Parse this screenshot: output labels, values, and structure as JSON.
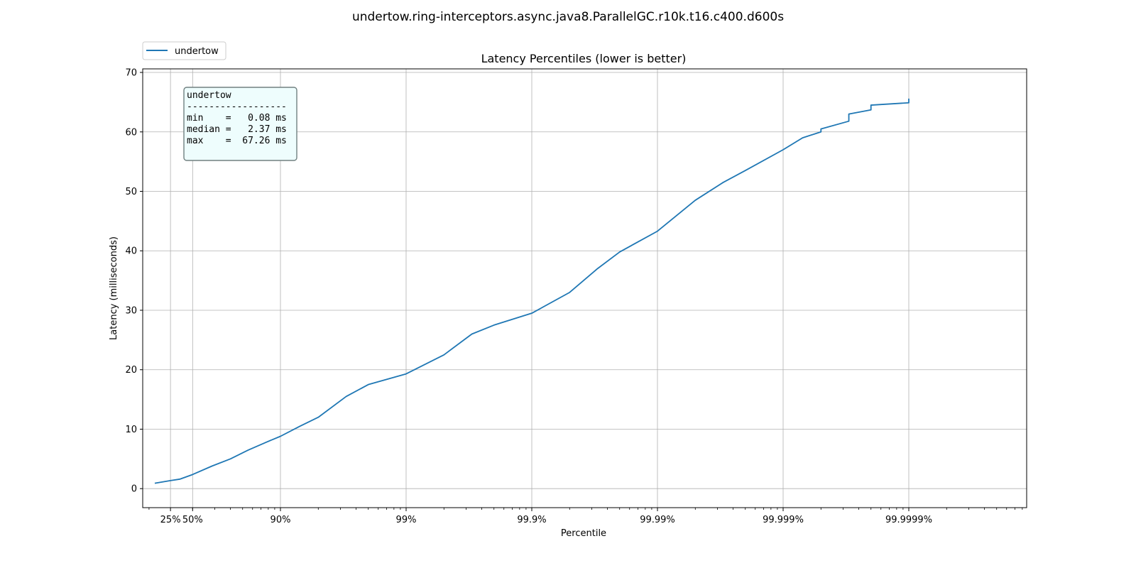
{
  "figure_title": "undertow.ring-interceptors.async.java8.ParallelGC.r10k.t16.c400.d600s",
  "legend": {
    "items": [
      {
        "label": "undertow",
        "color": "#1f77b4"
      }
    ]
  },
  "stats_box": {
    "lines": [
      "undertow",
      "------------------",
      "min    =   0.08 ms",
      "median =   2.37 ms",
      "max    =  67.26 ms"
    ]
  },
  "chart_data": {
    "type": "line",
    "title": "Latency Percentiles (lower is better)",
    "xlabel": "Percentile",
    "ylabel": "Latency (milliseconds)",
    "x_scale": "log of 1/(1 - percentile)",
    "x_ticks": [
      {
        "value": 25,
        "label": "25%"
      },
      {
        "value": 50,
        "label": "50%"
      },
      {
        "value": 90,
        "label": "90%"
      },
      {
        "value": 99,
        "label": "99%"
      },
      {
        "value": 99.9,
        "label": "99.9%"
      },
      {
        "value": 99.99,
        "label": "99.99%"
      },
      {
        "value": 99.999,
        "label": "99.999%"
      },
      {
        "value": 99.9999,
        "label": "99.9999%"
      }
    ],
    "ylim": [
      -3.2,
      70.6
    ],
    "y_ticks": [
      0,
      10,
      20,
      30,
      40,
      50,
      60,
      70
    ],
    "grid": true,
    "legend_position": "top-left, above plot",
    "series": [
      {
        "name": "undertow",
        "color": "#1f77b4",
        "points": [
          [
            0,
            0.9
          ],
          [
            25,
            1.35
          ],
          [
            37,
            1.6
          ],
          [
            50,
            2.37
          ],
          [
            65,
            3.8
          ],
          [
            75,
            5.0
          ],
          [
            82,
            6.5
          ],
          [
            87,
            7.8
          ],
          [
            90,
            8.8
          ],
          [
            93,
            10.5
          ],
          [
            95,
            12.0
          ],
          [
            97,
            15.5
          ],
          [
            98,
            17.5
          ],
          [
            99,
            19.3
          ],
          [
            99.5,
            22.5
          ],
          [
            99.7,
            26.0
          ],
          [
            99.8,
            27.5
          ],
          [
            99.9,
            29.5
          ],
          [
            99.95,
            33.0
          ],
          [
            99.97,
            37.0
          ],
          [
            99.98,
            39.8
          ],
          [
            99.99,
            43.3
          ],
          [
            99.995,
            48.5
          ],
          [
            99.997,
            51.5
          ],
          [
            99.998,
            53.5
          ],
          [
            99.999,
            57.0
          ],
          [
            99.9993,
            59.0
          ],
          [
            99.9995,
            60.0
          ],
          [
            99.9995,
            60.5
          ],
          [
            99.9997,
            61.8
          ],
          [
            99.9997,
            63.0
          ],
          [
            99.9998,
            63.7
          ],
          [
            99.9998,
            64.5
          ],
          [
            99.9999,
            64.9
          ],
          [
            99.9999,
            65.6
          ]
        ]
      }
    ]
  }
}
